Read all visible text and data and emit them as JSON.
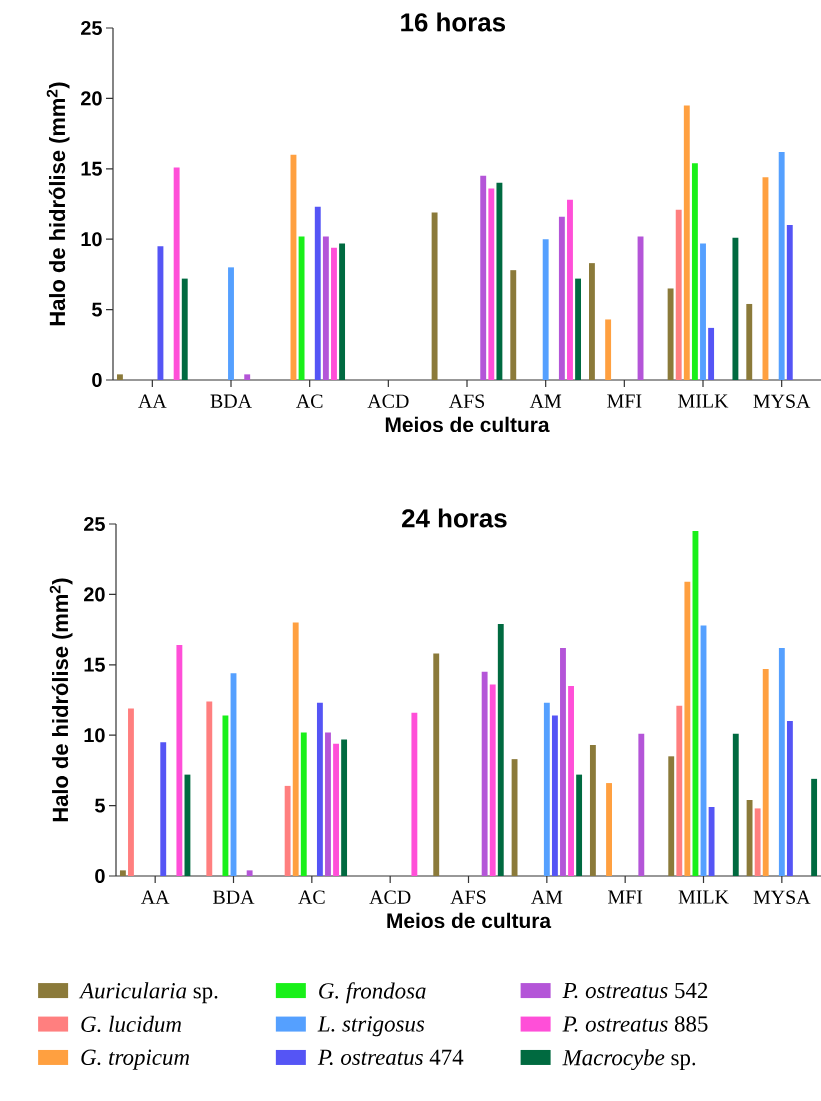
{
  "chart_data": [
    {
      "type": "bar",
      "title": "16 horas",
      "xlabel": "Meios de cultura",
      "ylabel": "Halo de hidrólise (mm$^{2}$)",
      "categories": [
        "AA",
        "BDA",
        "AC",
        "ACD",
        "AFS",
        "AM",
        "MFI",
        "MILK",
        "MYSA"
      ],
      "ylim": [
        0,
        25
      ],
      "yticks": [
        0,
        5,
        10,
        15,
        20,
        25
      ],
      "series": [
        {
          "color": "#8b7a3a",
          "values": [
            0.4,
            null,
            null,
            null,
            11.9,
            7.8,
            8.3,
            6.5,
            5.4
          ]
        },
        {
          "color": "#ff7f7f",
          "values": [
            null,
            null,
            null,
            null,
            null,
            null,
            null,
            12.1,
            null
          ]
        },
        {
          "color": "#ffa040",
          "values": [
            null,
            null,
            16.0,
            null,
            null,
            null,
            4.3,
            19.5,
            14.4
          ]
        },
        {
          "color": "#19f019",
          "values": [
            null,
            null,
            10.2,
            null,
            null,
            null,
            null,
            15.4,
            null
          ]
        },
        {
          "color": "#55a0ff",
          "values": [
            null,
            8.0,
            null,
            null,
            null,
            10.0,
            null,
            9.7,
            16.2
          ]
        },
        {
          "color": "#5555f5",
          "values": [
            9.5,
            null,
            12.3,
            null,
            null,
            null,
            null,
            3.7,
            11.0
          ]
        },
        {
          "color": "#b455d8",
          "values": [
            null,
            0.4,
            10.2,
            null,
            14.5,
            11.6,
            10.2,
            null,
            null
          ]
        },
        {
          "color": "#ff4fd8",
          "values": [
            15.1,
            null,
            9.4,
            null,
            13.6,
            12.8,
            null,
            null,
            null
          ]
        },
        {
          "color": "#006a40",
          "values": [
            7.2,
            null,
            9.7,
            null,
            14.0,
            7.2,
            null,
            10.1,
            null
          ]
        }
      ]
    },
    {
      "type": "bar",
      "title": "24 horas",
      "xlabel": "Meios de cultura",
      "ylabel": "Halo de hidrólise (mm$^{2}$)",
      "categories": [
        "AA",
        "BDA",
        "AC",
        "ACD",
        "AFS",
        "AM",
        "MFI",
        "MILK",
        "MYSA"
      ],
      "ylim": [
        0,
        25
      ],
      "yticks": [
        0,
        5,
        10,
        15,
        20,
        25
      ],
      "legend": "bottom",
      "series": [
        {
          "name": "*Auricularia* sp.",
          "color": "#8b7a3a",
          "values": [
            0.4,
            null,
            null,
            null,
            15.8,
            8.3,
            9.3,
            8.5,
            5.4
          ]
        },
        {
          "name": "*G. lucidum*",
          "color": "#ff7f7f",
          "values": [
            11.9,
            12.4,
            6.4,
            null,
            null,
            null,
            null,
            12.1,
            4.8
          ]
        },
        {
          "name": "*G. tropicum*",
          "color": "#ffa040",
          "values": [
            null,
            null,
            18.0,
            null,
            null,
            null,
            6.6,
            20.9,
            14.7
          ]
        },
        {
          "name": "*G. frondosa*",
          "color": "#19f019",
          "values": [
            null,
            11.4,
            10.2,
            null,
            null,
            null,
            null,
            24.5,
            null
          ]
        },
        {
          "name": "*L. strigosus*",
          "color": "#55a0ff",
          "values": [
            null,
            14.4,
            null,
            null,
            null,
            12.3,
            null,
            17.8,
            16.2
          ]
        },
        {
          "name": "*P. ostreatus* 474",
          "color": "#5555f5",
          "values": [
            9.5,
            null,
            12.3,
            null,
            null,
            11.4,
            null,
            4.9,
            11.0
          ]
        },
        {
          "name": "*P. ostreatus* 542",
          "color": "#b455d8",
          "values": [
            null,
            0.4,
            10.2,
            null,
            14.5,
            16.2,
            10.1,
            null,
            null
          ]
        },
        {
          "name": "*P. ostreatus* 885",
          "color": "#ff4fd8",
          "values": [
            16.4,
            null,
            9.4,
            11.6,
            13.6,
            13.5,
            null,
            null,
            null
          ]
        },
        {
          "name": "*Macrocybe* sp.",
          "color": "#006a40",
          "values": [
            7.2,
            null,
            9.7,
            null,
            17.9,
            7.2,
            null,
            10.1,
            6.9
          ]
        }
      ]
    }
  ]
}
